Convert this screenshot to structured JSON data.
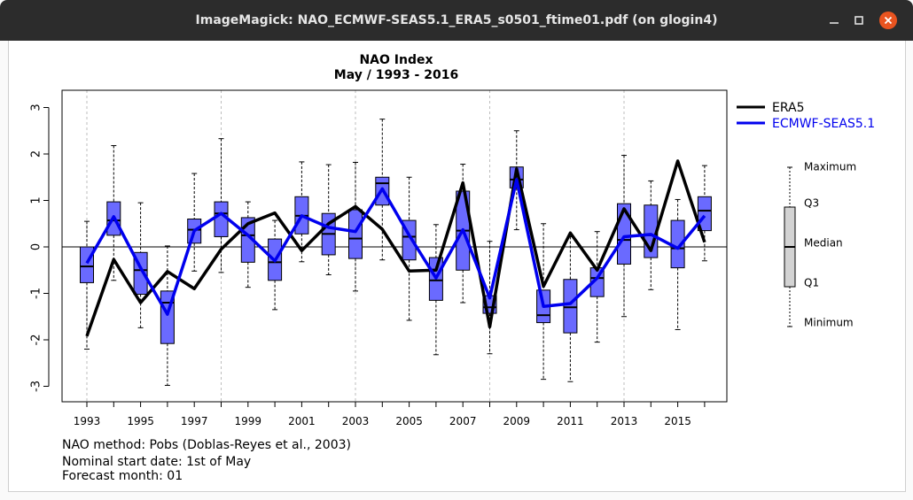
{
  "window": {
    "title": "ImageMagick: NAO_ECMWF-SEAS5.1_ERA5_s0501_ftime01.pdf (on glogin4)"
  },
  "colors": {
    "era5": "#000000",
    "seas": "#0000ee",
    "box_fill": "#6a6aff",
    "key_box_fill": "#d3d3d3",
    "titlebar": "#2c2c2c",
    "close_button": "#e95420"
  },
  "chart_data": {
    "type": "boxplot+line",
    "title": "NAO Index",
    "subtitle": "May / 1993 - 2016",
    "ylim": [
      -3.3,
      3.3
    ],
    "yticks": [
      -3,
      -2,
      -1,
      0,
      1,
      2,
      3
    ],
    "x": [
      1993,
      1994,
      1995,
      1996,
      1997,
      1998,
      1999,
      2000,
      2001,
      2002,
      2003,
      2004,
      2005,
      2006,
      2007,
      2008,
      2009,
      2010,
      2011,
      2012,
      2013,
      2014,
      2015,
      2016
    ],
    "xtick_labels": [
      "1993",
      "1995",
      "1997",
      "1999",
      "2001",
      "2003",
      "2005",
      "2007",
      "2009",
      "2011",
      "2013",
      "2015"
    ],
    "vgrid_years": [
      1993,
      1998,
      2003,
      2008,
      2013
    ],
    "grid": "dotted vertical lines every 5 years, solid zero line",
    "boxes": [
      {
        "year": 1993,
        "min": -2.2,
        "q1": -0.77,
        "median": -0.42,
        "q3": 0.0,
        "max": 0.55
      },
      {
        "year": 1994,
        "min": -0.72,
        "q1": 0.25,
        "median": 0.57,
        "q3": 0.97,
        "max": 2.18
      },
      {
        "year": 1995,
        "min": -1.74,
        "q1": -1.02,
        "median": -0.5,
        "q3": -0.12,
        "max": 0.95
      },
      {
        "year": 1996,
        "min": -2.98,
        "q1": -2.08,
        "median": -1.2,
        "q3": -0.95,
        "max": 0.02
      },
      {
        "year": 1997,
        "min": -0.52,
        "q1": 0.08,
        "median": 0.37,
        "q3": 0.6,
        "max": 1.58
      },
      {
        "year": 1998,
        "min": -0.55,
        "q1": 0.22,
        "median": 0.72,
        "q3": 0.97,
        "max": 2.33
      },
      {
        "year": 1999,
        "min": -0.87,
        "q1": -0.33,
        "median": 0.25,
        "q3": 0.63,
        "max": 0.97
      },
      {
        "year": 2000,
        "min": -1.35,
        "q1": -0.72,
        "median": -0.33,
        "q3": 0.17,
        "max": 0.57
      },
      {
        "year": 2001,
        "min": -0.32,
        "q1": 0.28,
        "median": 0.67,
        "q3": 1.08,
        "max": 1.83
      },
      {
        "year": 2002,
        "min": -0.6,
        "q1": -0.17,
        "median": 0.28,
        "q3": 0.72,
        "max": 1.77
      },
      {
        "year": 2003,
        "min": -0.95,
        "q1": -0.25,
        "median": 0.18,
        "q3": 0.8,
        "max": 1.82
      },
      {
        "year": 2004,
        "min": -0.28,
        "q1": 0.9,
        "median": 1.37,
        "q3": 1.5,
        "max": 2.75
      },
      {
        "year": 2005,
        "min": -1.58,
        "q1": -0.28,
        "median": 0.22,
        "q3": 0.57,
        "max": 1.5
      },
      {
        "year": 2006,
        "min": -2.32,
        "q1": -1.15,
        "median": -0.72,
        "q3": -0.23,
        "max": 0.48
      },
      {
        "year": 2007,
        "min": -1.2,
        "q1": -0.5,
        "median": 0.35,
        "q3": 1.2,
        "max": 1.78
      },
      {
        "year": 2008,
        "min": -2.3,
        "q1": -1.43,
        "median": -1.3,
        "q3": -1.05,
        "max": 0.12
      },
      {
        "year": 2009,
        "min": 0.37,
        "q1": 1.27,
        "median": 1.45,
        "q3": 1.72,
        "max": 2.5
      },
      {
        "year": 2010,
        "min": -2.85,
        "q1": -1.63,
        "median": -1.47,
        "q3": -0.93,
        "max": 0.5
      },
      {
        "year": 2011,
        "min": -2.9,
        "q1": -1.85,
        "median": -1.3,
        "q3": -0.7,
        "max": 0.22
      },
      {
        "year": 2012,
        "min": -2.05,
        "q1": -1.07,
        "median": -0.67,
        "q3": -0.45,
        "max": 0.33
      },
      {
        "year": 2013,
        "min": -1.5,
        "q1": -0.37,
        "median": 0.15,
        "q3": 0.93,
        "max": 1.97
      },
      {
        "year": 2014,
        "min": -0.92,
        "q1": -0.23,
        "median": 0.25,
        "q3": 0.9,
        "max": 1.42
      },
      {
        "year": 2015,
        "min": -1.78,
        "q1": -0.45,
        "median": -0.03,
        "q3": 0.57,
        "max": 1.02
      },
      {
        "year": 2016,
        "min": -0.3,
        "q1": 0.35,
        "median": 0.78,
        "q3": 1.08,
        "max": 1.75
      }
    ],
    "series": [
      {
        "name": "ERA5",
        "values": [
          -1.92,
          -0.27,
          -1.2,
          -0.53,
          -0.9,
          -0.05,
          0.5,
          0.73,
          -0.08,
          0.5,
          0.87,
          0.38,
          -0.52,
          -0.5,
          1.38,
          -1.72,
          1.68,
          -0.85,
          0.3,
          -0.5,
          0.82,
          -0.08,
          1.85,
          0.1
        ]
      },
      {
        "name": "ECMWF-SEAS5.1",
        "values": [
          -0.35,
          0.65,
          -0.45,
          -1.45,
          0.35,
          0.72,
          0.25,
          -0.3,
          0.67,
          0.42,
          0.33,
          1.25,
          0.25,
          -0.67,
          0.37,
          -1.1,
          1.45,
          -1.28,
          -1.22,
          -0.67,
          0.22,
          0.27,
          -0.03,
          0.67
        ]
      }
    ],
    "legend": {
      "placement": "right",
      "entries": [
        "ERA5",
        "ECMWF-SEAS5.1"
      ]
    },
    "box_key": {
      "labels": [
        "Maximum",
        "Q3",
        "Median",
        "Q1",
        "Minimum"
      ]
    },
    "footer": [
      "NAO method: Pobs (Doblas-Reyes et al., 2003)",
      "Nominal start date: 1st of May",
      "Forecast month: 01"
    ]
  }
}
